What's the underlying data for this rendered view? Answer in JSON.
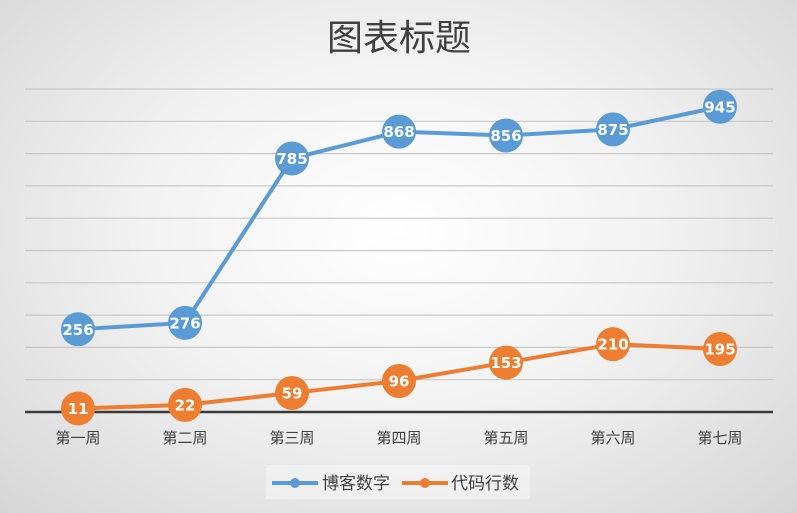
{
  "chart_data": {
    "type": "line",
    "title": "图表标题",
    "categories": [
      "第一周",
      "第二周",
      "第三周",
      "第四周",
      "第五周",
      "第六周",
      "第七周"
    ],
    "series": [
      {
        "name": "博客数字",
        "values": [
          256,
          276,
          785,
          868,
          856,
          875,
          945
        ],
        "color": "#5b9bd5"
      },
      {
        "name": "代码行数",
        "values": [
          11,
          22,
          59,
          96,
          153,
          210,
          195
        ],
        "color": "#ed7d31"
      }
    ],
    "ylim": [
      0,
      1000
    ],
    "grid": true,
    "legend": "bottom",
    "xlabel": "",
    "ylabel": ""
  }
}
